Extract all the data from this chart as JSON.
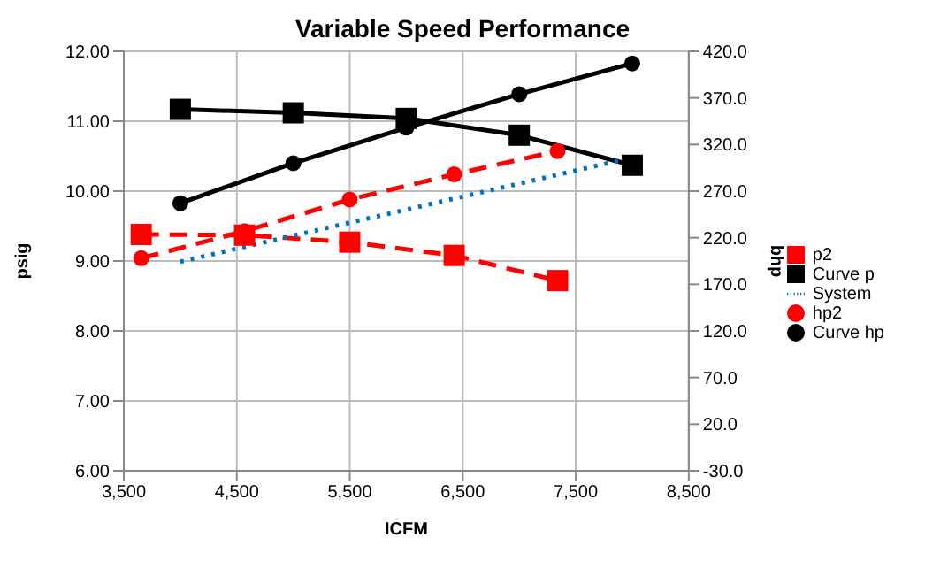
{
  "chart_data": {
    "type": "line",
    "title": "Variable Speed Performance",
    "xlabel": "ICFM",
    "ylabel": "psig",
    "y2label": "bhp",
    "xlim": [
      3500,
      8500
    ],
    "xticks": [
      {
        "value": 3500,
        "label": "3,500"
      },
      {
        "value": 4500,
        "label": "4,500"
      },
      {
        "value": 5500,
        "label": "5,500"
      },
      {
        "value": 6500,
        "label": "6,500"
      },
      {
        "value": 7500,
        "label": "7,500"
      },
      {
        "value": 8500,
        "label": "8,500"
      }
    ],
    "ylim": [
      6,
      12
    ],
    "yticks": [
      {
        "value": 6,
        "label": "6.00"
      },
      {
        "value": 7,
        "label": "7.00"
      },
      {
        "value": 8,
        "label": "8.00"
      },
      {
        "value": 9,
        "label": "9.00"
      },
      {
        "value": 10,
        "label": "10.00"
      },
      {
        "value": 11,
        "label": "11.00"
      },
      {
        "value": 12,
        "label": "12.00"
      }
    ],
    "y2lim": [
      -30,
      420
    ],
    "y2ticks": [
      {
        "value": -30,
        "label": "-30.0"
      },
      {
        "value": 20,
        "label": "20.0"
      },
      {
        "value": 70,
        "label": "70.0"
      },
      {
        "value": 120,
        "label": "120.0"
      },
      {
        "value": 170,
        "label": "170.0"
      },
      {
        "value": 220,
        "label": "220.0"
      },
      {
        "value": 270,
        "label": "270.0"
      },
      {
        "value": 320,
        "label": "320.0"
      },
      {
        "value": 370,
        "label": "370.0"
      },
      {
        "value": 420,
        "label": "420.0"
      }
    ],
    "grid": true,
    "legend": "right",
    "series": [
      {
        "name": "p2",
        "color": "#ff0000",
        "marker": "square",
        "line_style": "dashed",
        "x": [
          3654,
          4569,
          5499,
          6424,
          7339
        ],
        "values": [
          9.38,
          9.37,
          9.27,
          9.08,
          8.72
        ]
      },
      {
        "name": "Curve p",
        "color": "#000000",
        "marker": "square",
        "line_style": "solid",
        "x": [
          4000,
          5000,
          6000,
          7000,
          8000
        ],
        "values": [
          11.17,
          11.12,
          11.04,
          10.8,
          10.37
        ]
      },
      {
        "name": "System",
        "color": "#0070c0",
        "marker": "none",
        "line_style": "dotted",
        "x": [
          4000,
          8000
        ],
        "values": [
          8.99,
          10.48
        ]
      },
      {
        "name": "hp2",
        "color": "#ff0000",
        "marker": "circle",
        "line_style": "dashed",
        "axis": "y2",
        "x": [
          3654,
          4569,
          5499,
          6424,
          7339
        ],
        "values": [
          198,
          227,
          261,
          288,
          313
        ]
      },
      {
        "name": "Curve hp",
        "color": "#000000",
        "marker": "circle",
        "line_style": "solid",
        "axis": "y2",
        "x": [
          4000,
          5000,
          6000,
          7000,
          8000
        ],
        "values": [
          257,
          300,
          338,
          374,
          407
        ]
      }
    ]
  }
}
